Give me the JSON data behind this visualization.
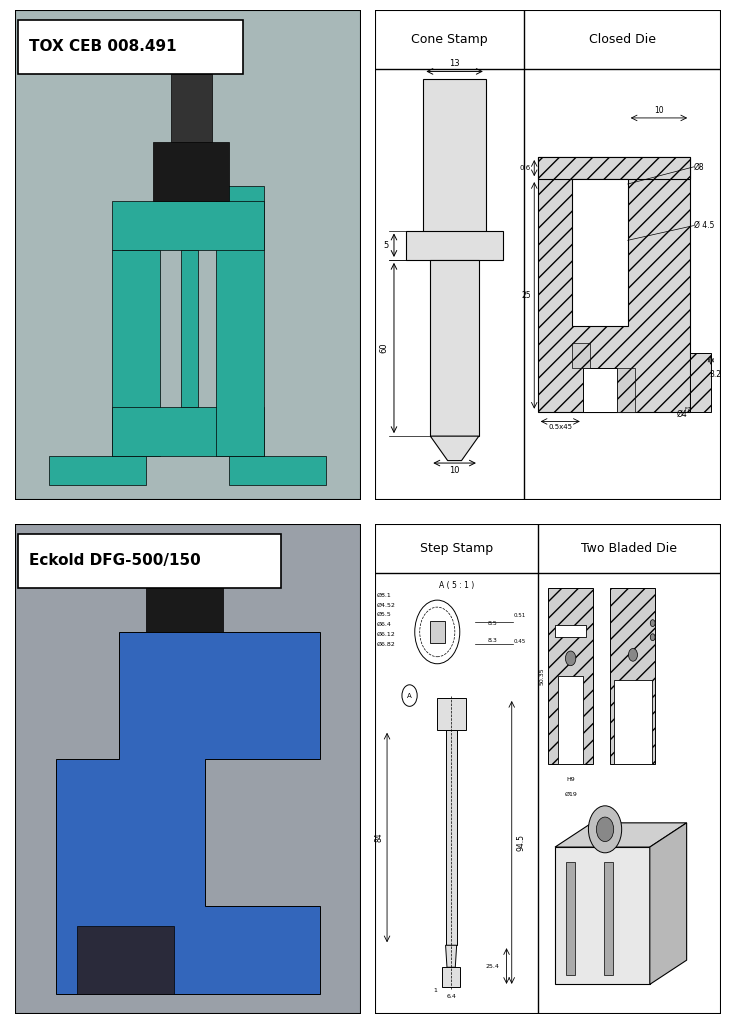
{
  "top_left_label": "TOX CEB 008.491",
  "bottom_left_label": "Eckold DFG-500/150",
  "top_right_col1_header": "Cone Stamp",
  "top_right_col2_header": "Closed Die",
  "bottom_right_col1_header": "Step Stamp",
  "bottom_right_col2_header": "Two Bladed Die",
  "bg_color": "#ffffff",
  "tox_machine_color": "#2aaa99",
  "eckold_machine_color": "#3366bb"
}
